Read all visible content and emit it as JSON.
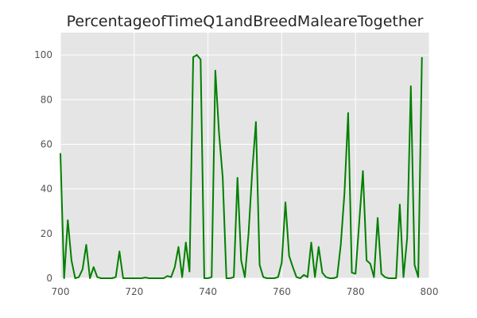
{
  "chart_data": {
    "type": "line",
    "title": "PercentageofTimeQ1andBreedMaleareTogether",
    "xlabel": "",
    "ylabel": "",
    "xlim": [
      700,
      800
    ],
    "ylim": [
      0,
      110
    ],
    "x_ticks": [
      700,
      720,
      740,
      760,
      780,
      800
    ],
    "y_ticks": [
      0,
      20,
      40,
      60,
      80,
      100
    ],
    "grid": true,
    "colors": {
      "line": "#008000",
      "plot_bg": "#e5e5e5",
      "grid": "#ffffff"
    },
    "series": [
      {
        "x": [
          700,
          701,
          702,
          703,
          704,
          705,
          706,
          707,
          708,
          709,
          710,
          711,
          712,
          713,
          714,
          715,
          716,
          717,
          718,
          719,
          720,
          721,
          722,
          723,
          724,
          725,
          726,
          727,
          728,
          729,
          730,
          731,
          732,
          733,
          734,
          735,
          736,
          737,
          738,
          739,
          740,
          741,
          742,
          743,
          744,
          745,
          746,
          747,
          748,
          749,
          750,
          751,
          752,
          753,
          754,
          755,
          756,
          757,
          758,
          759,
          760,
          761,
          762,
          763,
          764,
          765,
          766,
          767,
          768,
          769,
          770,
          771,
          772,
          773,
          774,
          775,
          776,
          777,
          778,
          779,
          780,
          781,
          782,
          783,
          784,
          785,
          786,
          787,
          788,
          789,
          790,
          791,
          792,
          793,
          794,
          795,
          796,
          797,
          798
        ],
        "y": [
          56,
          0,
          26,
          8,
          0,
          0.5,
          4,
          15,
          0,
          5,
          0.5,
          0,
          0,
          0,
          0,
          0.5,
          12,
          0,
          0,
          0,
          0,
          0,
          0,
          0.3,
          0,
          0,
          0,
          0,
          0,
          1,
          0.5,
          5,
          14,
          0.5,
          16,
          3,
          99,
          100,
          98,
          0,
          0,
          0.5,
          93,
          65,
          45,
          0,
          0,
          0.5,
          45,
          8,
          0.5,
          20,
          48,
          70,
          6,
          0.5,
          0,
          0,
          0,
          0.5,
          7,
          34,
          10,
          5,
          0.5,
          0,
          1.5,
          0.5,
          16,
          0.5,
          14,
          2.5,
          0.5,
          0,
          0,
          0.5,
          15,
          38,
          74,
          2.5,
          2,
          25,
          48,
          8,
          6.5,
          0.5,
          27,
          2,
          0.5,
          0,
          0,
          0,
          33,
          0.5,
          18,
          86,
          6,
          0.5,
          99
        ]
      }
    ]
  }
}
